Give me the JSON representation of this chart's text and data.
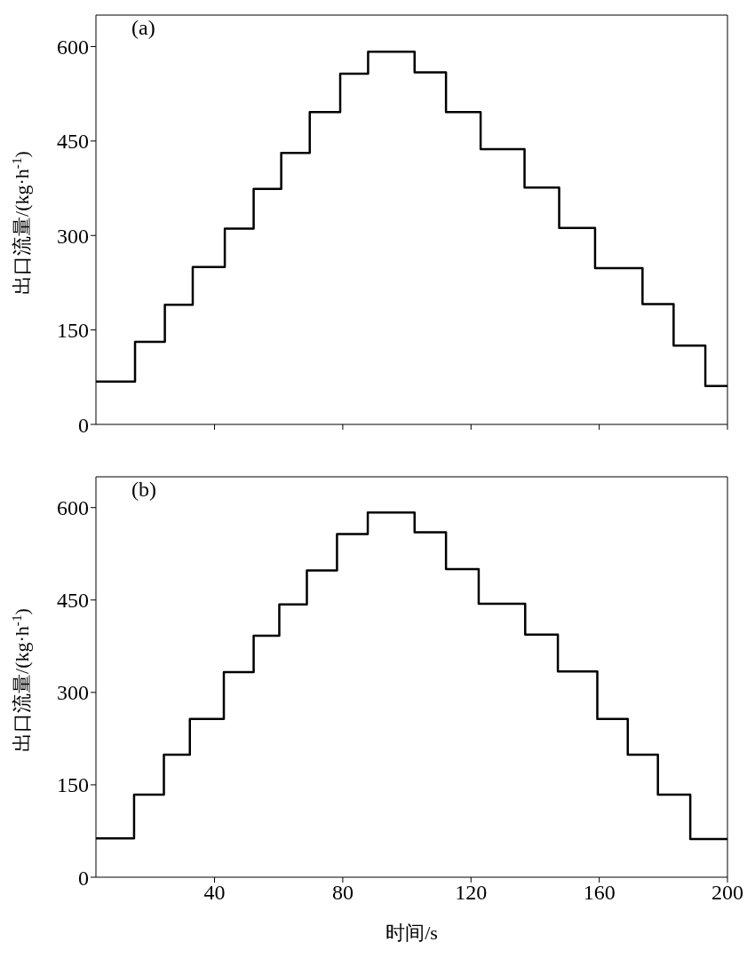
{
  "chart_data": [
    {
      "type": "step",
      "ylabel": "出口流量/(kg·h$^{-1}$)",
      "annotations": [
        "(a)"
      ],
      "xlim": [
        3,
        200
      ],
      "xticks": [
        40,
        80,
        120,
        160,
        200
      ],
      "ylim": [
        0,
        650
      ],
      "yticks": [
        0,
        150,
        300,
        450,
        600
      ],
      "tick_labels": "y",
      "marker": "none",
      "line_style": "solid",
      "series": [
        {
          "color": "#000000",
          "x": [
            3,
            15.2,
            24.5,
            33.2,
            43.2,
            52.2,
            60.8,
            69.7,
            79.2,
            87.9,
            102.4,
            112.2,
            123,
            136.7,
            147.5,
            158.7,
            173.5,
            183.2,
            193.1,
            200
          ],
          "values": [
            68,
            131,
            190,
            250,
            311,
            374,
            431,
            496,
            557,
            592,
            559,
            496,
            437,
            376,
            312,
            248,
            191,
            125,
            61,
            61
          ]
        }
      ]
    },
    {
      "type": "step",
      "xlabel": "时间/s",
      "ylabel": "出口流量/(kg·h$^{-1}$)",
      "annotations": [
        "(b)"
      ],
      "xlim": [
        3,
        200
      ],
      "xticks": [
        40,
        80,
        120,
        160,
        200
      ],
      "ylim": [
        0,
        650
      ],
      "yticks": [
        0,
        150,
        300,
        450,
        600
      ],
      "marker": "none",
      "line_style": "solid",
      "series": [
        {
          "color": "#000000",
          "x": [
            3,
            14.9,
            24.2,
            32.3,
            42.9,
            52.2,
            60.2,
            68.8,
            78.2,
            87.8,
            102.4,
            112.2,
            122.4,
            136.9,
            147.1,
            159.4,
            168.9,
            178.3,
            188.4,
            200
          ],
          "values": [
            63,
            134,
            199,
            257,
            333,
            392,
            443,
            498,
            557,
            592,
            560,
            500,
            444,
            394,
            334,
            257,
            199,
            134,
            62,
            62
          ]
        }
      ]
    }
  ]
}
